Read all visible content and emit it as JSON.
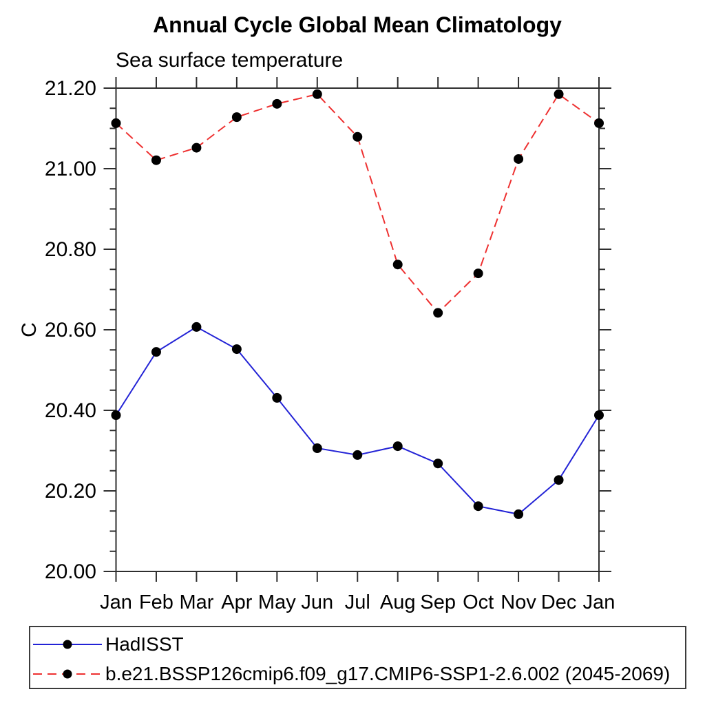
{
  "chart_data": {
    "type": "line",
    "title": "Annual Cycle Global Mean Climatology",
    "subtitle": "Sea surface temperature",
    "ylabel": "C",
    "xlabel": "",
    "categories": [
      "Jan",
      "Feb",
      "Mar",
      "Apr",
      "May",
      "Jun",
      "Jul",
      "Aug",
      "Sep",
      "Oct",
      "Nov",
      "Dec",
      "Jan"
    ],
    "ylim": [
      20.0,
      21.2
    ],
    "ytick_labels": [
      "20.00",
      "20.20",
      "20.40",
      "20.60",
      "20.80",
      "21.00",
      "21.20"
    ],
    "ytick_step": 0.2,
    "yminor_step": 0.05,
    "grid": false,
    "frame": "box",
    "legend_position": "bottom-left",
    "marker_color": "#000000",
    "series": [
      {
        "name": "HadISST",
        "color": "#2323d6",
        "line_style": "solid",
        "marker": "circle",
        "values": [
          20.388,
          20.545,
          20.607,
          20.552,
          20.431,
          20.306,
          20.289,
          20.311,
          20.268,
          20.162,
          20.142,
          20.227,
          20.388
        ]
      },
      {
        "name": "b.e21.BSSP126cmip6.f09_g17.CMIP6-SSP1-2.6.002 (2045-2069)",
        "color": "#ee3030",
        "line_style": "dashed",
        "marker": "circle",
        "values": [
          21.113,
          21.021,
          21.052,
          21.128,
          21.161,
          21.185,
          21.079,
          20.762,
          20.642,
          20.74,
          21.024,
          21.185,
          21.113
        ]
      }
    ]
  }
}
